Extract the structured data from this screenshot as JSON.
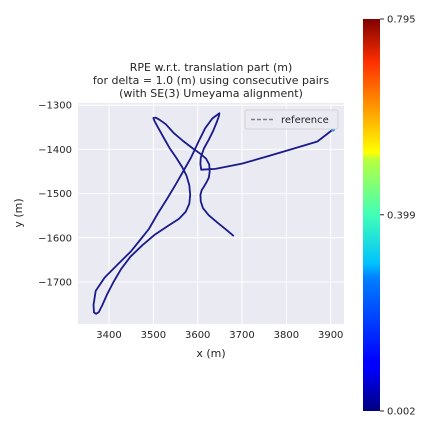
{
  "chart_data": {
    "type": "line",
    "title_lines": [
      "RPE w.r.t. translation part (m)",
      "for delta = 1.0 (m) using consecutive pairs",
      "(with SE(3) Umeyama alignment)"
    ],
    "xlabel": "x (m)",
    "ylabel": "y (m)",
    "xlim": [
      3330,
      3930
    ],
    "ylim": [
      -1795,
      -1295
    ],
    "xticks": [
      3400,
      3500,
      3600,
      3700,
      3800,
      3900
    ],
    "yticks": [
      -1300,
      -1400,
      -1500,
      -1600,
      -1700
    ],
    "xtick_labels": [
      "3400",
      "3500",
      "3600",
      "3700",
      "3800",
      "3900"
    ],
    "ytick_labels": [
      "−1300",
      "−1400",
      "−1500",
      "−1600",
      "−1700"
    ],
    "grid": true,
    "legend": {
      "placement": "top-right",
      "entries": [
        "reference"
      ]
    },
    "series": [
      {
        "name": "reference",
        "style": "dashed",
        "color": "#808080",
        "x": [
          3680,
          3665,
          3645,
          3625,
          3612,
          3607,
          3606,
          3609,
          3615,
          3620,
          3625,
          3627,
          3626,
          3619,
          3606,
          3588,
          3567,
          3546,
          3528,
          3514,
          3505,
          3500,
          3502,
          3511,
          3523,
          3536,
          3551,
          3565,
          3575,
          3581,
          3583,
          3581,
          3573,
          3558,
          3533,
          3503,
          3475,
          3448,
          3427,
          3410,
          3396,
          3385,
          3377,
          3371,
          3366,
          3365,
          3370,
          3390,
          3420,
          3450,
          3470,
          3490,
          3510,
          3532,
          3550,
          3567,
          3585,
          3603,
          3617,
          3633,
          3645,
          3649,
          3648,
          3643,
          3635,
          3625,
          3614,
          3607,
          3606,
          3608,
          3640,
          3700,
          3760,
          3820,
          3870,
          3905
        ],
        "y": [
          -1595,
          -1582,
          -1566,
          -1549,
          -1533,
          -1518,
          -1503,
          -1492,
          -1483,
          -1474,
          -1464,
          -1450,
          -1434,
          -1421,
          -1410,
          -1397,
          -1381,
          -1363,
          -1343,
          -1333,
          -1328,
          -1329,
          -1335,
          -1351,
          -1373,
          -1396,
          -1418,
          -1440,
          -1460,
          -1481,
          -1503,
          -1523,
          -1541,
          -1557,
          -1573,
          -1593,
          -1617,
          -1643,
          -1671,
          -1700,
          -1727,
          -1752,
          -1768,
          -1772,
          -1769,
          -1752,
          -1720,
          -1690,
          -1660,
          -1630,
          -1605,
          -1580,
          -1545,
          -1510,
          -1480,
          -1450,
          -1418,
          -1380,
          -1352,
          -1330,
          -1321,
          -1318,
          -1324,
          -1338,
          -1358,
          -1378,
          -1398,
          -1418,
          -1433,
          -1446,
          -1444,
          -1432,
          -1415,
          -1397,
          -1382,
          -1355
        ]
      },
      {
        "name": "",
        "style": "solid",
        "x": [
          3680,
          3665,
          3645,
          3625,
          3612,
          3607,
          3606,
          3609,
          3615,
          3620,
          3625,
          3627,
          3626,
          3619,
          3606,
          3588,
          3567,
          3546,
          3528,
          3514,
          3505,
          3500,
          3502,
          3511,
          3523,
          3536,
          3551,
          3565,
          3575,
          3581,
          3583,
          3581,
          3573,
          3558,
          3533,
          3503,
          3475,
          3448,
          3427,
          3410,
          3396,
          3385,
          3377,
          3371,
          3366,
          3365,
          3370,
          3390,
          3420,
          3450,
          3470,
          3490,
          3510,
          3532,
          3550,
          3567,
          3585,
          3603,
          3617,
          3633,
          3645,
          3649,
          3648,
          3643,
          3635,
          3625,
          3614,
          3607,
          3606,
          3608,
          3640,
          3700,
          3760,
          3820,
          3870,
          3905
        ],
        "y": [
          -1595,
          -1582,
          -1566,
          -1549,
          -1533,
          -1518,
          -1503,
          -1492,
          -1483,
          -1474,
          -1464,
          -1450,
          -1434,
          -1421,
          -1410,
          -1397,
          -1381,
          -1363,
          -1343,
          -1333,
          -1328,
          -1329,
          -1335,
          -1351,
          -1373,
          -1396,
          -1418,
          -1440,
          -1460,
          -1481,
          -1503,
          -1523,
          -1541,
          -1557,
          -1573,
          -1593,
          -1617,
          -1643,
          -1671,
          -1700,
          -1727,
          -1752,
          -1768,
          -1772,
          -1769,
          -1752,
          -1720,
          -1690,
          -1660,
          -1630,
          -1605,
          -1580,
          -1545,
          -1510,
          -1480,
          -1450,
          -1418,
          -1380,
          -1352,
          -1330,
          -1321,
          -1318,
          -1324,
          -1338,
          -1358,
          -1378,
          -1398,
          -1418,
          -1433,
          -1446,
          -1444,
          -1432,
          -1415,
          -1397,
          -1382,
          -1355
        ],
        "color": "#1a1a8c"
      }
    ],
    "colorbar": {
      "min": 0.002,
      "max": 0.795,
      "tick_values": [
        0.002,
        0.399,
        0.795
      ],
      "tick_labels": [
        "0.002",
        "0.399",
        "0.795"
      ],
      "colormap": "jet"
    }
  }
}
